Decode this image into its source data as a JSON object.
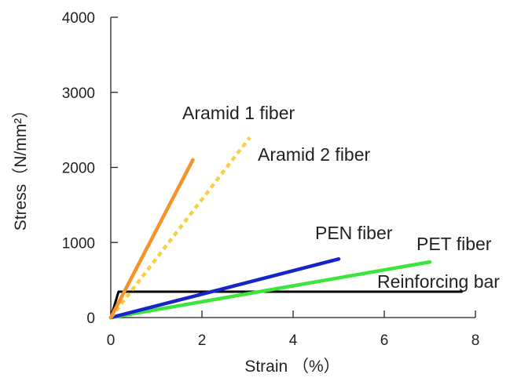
{
  "chart_data": {
    "type": "line",
    "xlabel": "Strain （%）",
    "ylabel": "Stress（N/mm²）",
    "xlim": [
      0,
      8
    ],
    "ylim": [
      0,
      4000
    ],
    "x_ticks": [
      0,
      2,
      4,
      6,
      8
    ],
    "y_ticks": [
      0,
      1000,
      2000,
      3000,
      4000
    ],
    "grid": false,
    "series": [
      {
        "name": "Aramid 1 fiber",
        "color": "#F7922A",
        "style": "solid",
        "points": [
          [
            0,
            0
          ],
          [
            1.8,
            2100
          ]
        ]
      },
      {
        "name": "Aramid 2 fiber",
        "color": "#F9CF47",
        "style": "dashed",
        "points": [
          [
            0,
            0
          ],
          [
            3.05,
            2400
          ]
        ]
      },
      {
        "name": "PEN fiber",
        "color": "#1725C8",
        "style": "solid",
        "points": [
          [
            0,
            0
          ],
          [
            5.0,
            780
          ]
        ]
      },
      {
        "name": "PET fiber",
        "color": "#3CE53C",
        "style": "solid",
        "points": [
          [
            0,
            0
          ],
          [
            7.0,
            740
          ]
        ]
      },
      {
        "name": "Reinforcing bar",
        "color": "#000000",
        "style": "solid",
        "points": [
          [
            0,
            0
          ],
          [
            0.17,
            345
          ],
          [
            7.7,
            345
          ]
        ]
      }
    ]
  }
}
